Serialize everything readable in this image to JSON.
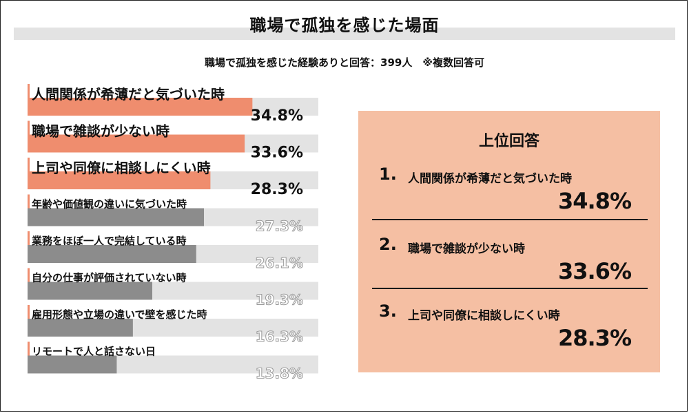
{
  "title": "職場で孤独を感じた場面",
  "subtitle": "職場で孤独を感じた経験ありと回答：399人　※複数回答可",
  "chart_data": {
    "type": "bar",
    "orientation": "horizontal",
    "categories": [
      "人間関係が希薄だと気づいた時",
      "職場で雑談が少ない時",
      "上司や同僚に相談しにくい時",
      "年齢や価値観の違いに気づいた時",
      "業務をほぼ一人で完結している時",
      "自分の仕事が評価されていない時",
      "雇用形態や立場の違いで壁を感じた時",
      "リモートで人と話さない日"
    ],
    "values": [
      34.8,
      33.6,
      28.3,
      27.3,
      26.1,
      19.3,
      16.3,
      13.8
    ],
    "value_labels": [
      "34.8%",
      "33.6%",
      "28.3%",
      "27.3%",
      "26.1%",
      "19.3%",
      "16.3%",
      "13.8%"
    ],
    "highlight_top": 3,
    "xlim": [
      0,
      45
    ],
    "colors": {
      "highlight": "#ef8d6e",
      "normal": "#8c8c8c",
      "track": "#e3e3e3",
      "accent_mark": "#ef8d6e"
    }
  },
  "top_answers": {
    "heading": "上位回答",
    "items": [
      {
        "number": "1.",
        "label": "人間関係が希薄だと気づいた時",
        "value": "34.8%"
      },
      {
        "number": "2.",
        "label": "職場で雑談が少ない時",
        "value": "33.6%"
      },
      {
        "number": "3.",
        "label": "上司や同僚に相談しにくい時",
        "value": "28.3%"
      }
    ],
    "panel_color": "#f5bfa3"
  }
}
